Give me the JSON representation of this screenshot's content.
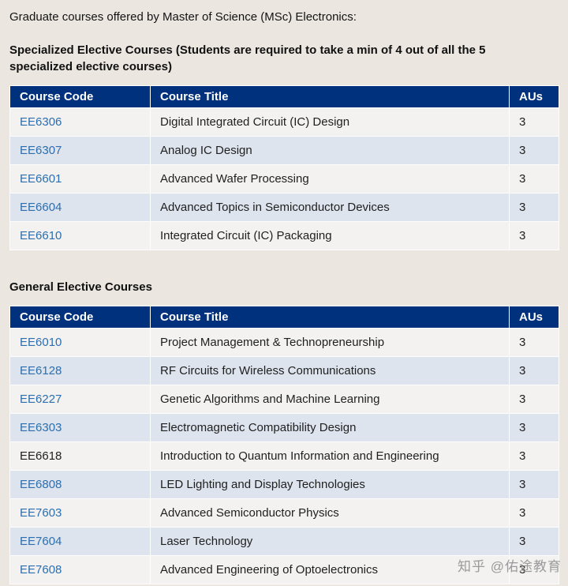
{
  "colors": {
    "page_bg": "#ebe7e0",
    "table_header_bg": "#00317c",
    "link": "#2b6fb0",
    "row_odd": "#f3f2f0",
    "row_even": "#dde4ee"
  },
  "intro": "Graduate courses offered by Master of Science (MSc) Electronics:",
  "watermark": "知乎 @佑途教育",
  "sections": [
    {
      "heading": "Specialized Elective Courses (Students are required to take a min of 4 out of all the 5 specialized elective courses)",
      "headers": [
        "Course Code",
        "Course Title",
        "AUs"
      ],
      "rows": [
        {
          "code": "EE6306",
          "title": "Digital Integrated Circuit (IC) Design",
          "aus": "3",
          "link": true
        },
        {
          "code": "EE6307",
          "title": "Analog IC Design",
          "aus": "3",
          "link": true
        },
        {
          "code": "EE6601",
          "title": "Advanced Wafer Processing",
          "aus": "3",
          "link": true
        },
        {
          "code": "EE6604",
          "title": "Advanced Topics in Semiconductor Devices",
          "aus": "3",
          "link": true
        },
        {
          "code": "EE6610",
          "title": "Integrated Circuit (IC) Packaging",
          "aus": "3",
          "link": true
        }
      ]
    },
    {
      "heading": "General Elective Courses",
      "headers": [
        "Course Code",
        "Course Title",
        "AUs"
      ],
      "rows": [
        {
          "code": "EE6010",
          "title": "Project Management & Technopreneurship",
          "aus": "3",
          "link": true
        },
        {
          "code": "EE6128",
          "title": "RF Circuits for Wireless Communications",
          "aus": "3",
          "link": true
        },
        {
          "code": "EE6227",
          "title": "Genetic Algorithms and Machine Learning",
          "aus": "3",
          "link": true
        },
        {
          "code": "EE6303",
          "title": "Electromagnetic Compatibility Design",
          "aus": "3",
          "link": true
        },
        {
          "code": "EE6618",
          "title": "Introduction to Quantum Information and Engineering",
          "aus": "3",
          "link": false
        },
        {
          "code": "EE6808",
          "title": "LED Lighting and Display Technologies",
          "aus": "3",
          "link": true
        },
        {
          "code": "EE7603",
          "title": "Advanced Semiconductor Physics",
          "aus": "3",
          "link": true
        },
        {
          "code": "EE7604",
          "title": "Laser Technology",
          "aus": "3",
          "link": true
        },
        {
          "code": "EE7608",
          "title": "Advanced Engineering of Optoelectronics",
          "aus": "3",
          "link": true
        }
      ]
    }
  ]
}
